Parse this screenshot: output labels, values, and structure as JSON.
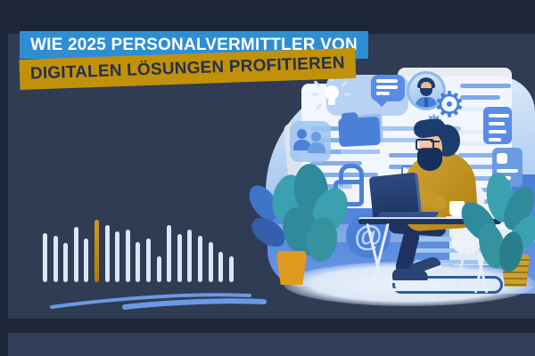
{
  "title": {
    "line1": "WIE 2025 PERSONALVERMITTLER VON",
    "line2": "DIGITALEN LÖSUNGEN PROFITIEREN"
  },
  "colors": {
    "background": "#1c2638",
    "panel": "#303b54",
    "accent_blue": "#2e8ed3",
    "accent_gold": "#c19109",
    "illustration_blue": "#4b80d8",
    "illustration_light_blue": "#aecdf2",
    "teal_plant": "#3ba0b0",
    "bar_light": "#dbe7f7",
    "bar_gold": "#c08d15",
    "swoosh_blue": "#6b99e3"
  },
  "waveform": {
    "type": "bar",
    "values": [
      55,
      52,
      44,
      62,
      49,
      70,
      64,
      57,
      59,
      45,
      49,
      29,
      64,
      54,
      59,
      52,
      45,
      34,
      29
    ],
    "highlight_index": 5
  },
  "glyphs": {
    "gear": "⚙",
    "at": "@"
  },
  "illustration": {
    "subject": "recruiter working on laptop at desk",
    "icons": [
      "lightbulb-icon",
      "chat-bubble-icon",
      "profile-avatar",
      "gear-icon",
      "folder-icon",
      "team-users-icon",
      "mail-document-icon",
      "padlock-icon",
      "document-icon",
      "id-card-icon",
      "at-symbol-icon"
    ],
    "plants": [
      "monstera-left",
      "plant-right"
    ]
  }
}
